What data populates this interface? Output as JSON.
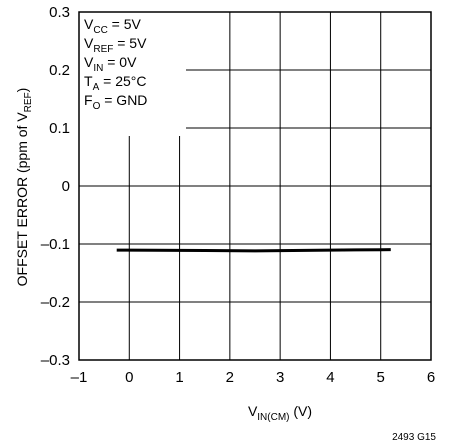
{
  "chart_data": {
    "type": "line",
    "title": "",
    "xlabel": {
      "main": "V",
      "sub": "IN(CM)",
      "unit": " (V)"
    },
    "ylabel": {
      "main": "OFFSET ERROR (ppm of V",
      "sub": "REF",
      "tail": ")"
    },
    "xlim": [
      -1,
      6
    ],
    "ylim": [
      -0.3,
      0.3
    ],
    "xticks": [
      -1,
      0,
      1,
      2,
      3,
      4,
      5,
      6
    ],
    "xtick_labels": [
      "–1",
      "0",
      "1",
      "2",
      "3",
      "4",
      "5",
      "6"
    ],
    "yticks": [
      -0.3,
      -0.2,
      -0.1,
      0,
      0.1,
      0.2,
      0.3
    ],
    "ytick_labels": [
      "–0.3",
      "–0.2",
      "–0.1",
      "0",
      "0.1",
      "0.2",
      "0.3"
    ],
    "grid": true,
    "series": [
      {
        "name": "",
        "color": "#000000",
        "x": [
          -0.25,
          0.5,
          1.5,
          2.5,
          3.5,
          4.5,
          5.2
        ],
        "y": [
          -0.1105,
          -0.1108,
          -0.1113,
          -0.1118,
          -0.111,
          -0.1102,
          -0.1097
        ]
      }
    ],
    "conditions": [
      {
        "main": "V",
        "sub": "CC",
        "rest": " = 5V"
      },
      {
        "main": "V",
        "sub": "REF",
        "rest": " = 5V"
      },
      {
        "main": "V",
        "sub": "IN",
        "rest": " = 0V"
      },
      {
        "main": "T",
        "sub": "A",
        "rest": " = 25°C"
      },
      {
        "main": "F",
        "sub": "O",
        "rest": " = GND"
      }
    ],
    "figure_id": "2493 G15"
  }
}
